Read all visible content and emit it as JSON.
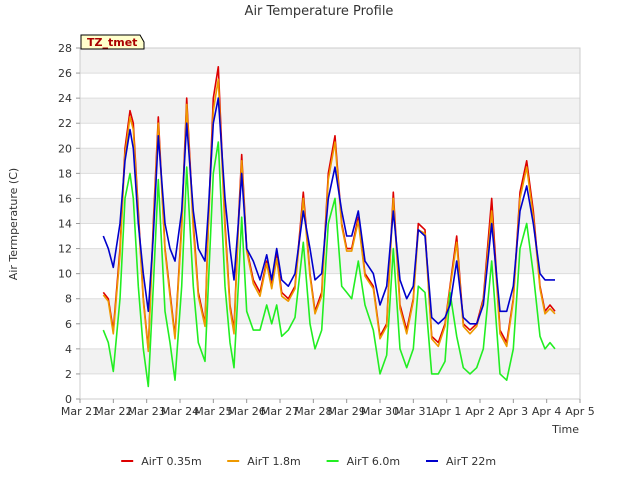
{
  "chart_data": {
    "type": "line",
    "title": "Air Temperature Profile",
    "xlabel": "Time",
    "ylabel": "Air Termperature (C)",
    "badge": "TZ_tmet",
    "ylim": [
      0,
      28
    ],
    "yticks": [
      0,
      2,
      4,
      6,
      8,
      10,
      12,
      14,
      16,
      18,
      20,
      22,
      24,
      26,
      28
    ],
    "xlim": [
      0,
      15
    ],
    "xticks": [
      {
        "value": 0,
        "label": "Mar 21"
      },
      {
        "value": 1,
        "label": "Mar 22"
      },
      {
        "value": 2,
        "label": "Mar 23"
      },
      {
        "value": 3,
        "label": "Mar 24"
      },
      {
        "value": 4,
        "label": "Mar 25"
      },
      {
        "value": 5,
        "label": "Mar 26"
      },
      {
        "value": 6,
        "label": "Mar 27"
      },
      {
        "value": 7,
        "label": "Mar 28"
      },
      {
        "value": 8,
        "label": "Mar 29"
      },
      {
        "value": 9,
        "label": "Mar 30"
      },
      {
        "value": 10,
        "label": "Mar 31"
      },
      {
        "value": 11,
        "label": "Apr 1"
      },
      {
        "value": 12,
        "label": "Apr 2"
      },
      {
        "value": 13,
        "label": "Apr 3"
      },
      {
        "value": 14,
        "label": "Apr 4"
      },
      {
        "value": 15,
        "label": "Apr 5"
      }
    ],
    "grid": "horizontal bands",
    "legend_position": "bottom",
    "series": [
      {
        "name": "AirT 0.35m",
        "color": "#dd0000",
        "x": [
          0.7,
          0.85,
          1.0,
          1.2,
          1.35,
          1.5,
          1.6,
          1.75,
          1.9,
          2.05,
          2.2,
          2.35,
          2.55,
          2.7,
          2.85,
          3.05,
          3.2,
          3.4,
          3.55,
          3.75,
          3.85,
          4.0,
          4.15,
          4.35,
          4.5,
          4.62,
          4.75,
          4.85,
          5.0,
          5.2,
          5.4,
          5.6,
          5.75,
          5.9,
          6.05,
          6.25,
          6.45,
          6.7,
          6.9,
          7.05,
          7.25,
          7.45,
          7.65,
          7.85,
          8.0,
          8.15,
          8.35,
          8.55,
          8.8,
          9.0,
          9.2,
          9.4,
          9.6,
          9.8,
          10.0,
          10.15,
          10.35,
          10.55,
          10.75,
          10.95,
          11.1,
          11.3,
          11.5,
          11.7,
          11.9,
          12.1,
          12.35,
          12.6,
          12.8,
          13.0,
          13.2,
          13.4,
          13.6,
          13.8,
          13.95,
          14.1,
          14.25
        ],
        "y": [
          8.5,
          8.0,
          5.5,
          12.0,
          20.0,
          23.0,
          22.0,
          15.0,
          8.0,
          4.0,
          14.0,
          22.5,
          12.0,
          8.5,
          5.0,
          14.0,
          24.0,
          14.0,
          8.5,
          6.0,
          14.0,
          24.0,
          26.5,
          14.0,
          7.5,
          5.5,
          14.0,
          19.5,
          12.0,
          9.5,
          8.5,
          11.0,
          9.0,
          11.5,
          8.5,
          8.0,
          9.0,
          16.5,
          10.0,
          7.0,
          8.5,
          18.0,
          21.0,
          14.0,
          12.0,
          12.0,
          14.5,
          10.0,
          9.0,
          5.0,
          6.0,
          16.5,
          7.5,
          5.5,
          8.0,
          14.0,
          13.5,
          5.0,
          4.5,
          6.0,
          9.0,
          13.0,
          6.0,
          5.5,
          6.0,
          8.0,
          16.0,
          5.5,
          4.5,
          8.0,
          16.5,
          19.0,
          15.0,
          9.0,
          7.0,
          7.5,
          7.0
        ]
      },
      {
        "name": "AirT 1.8m",
        "color": "#ee9900",
        "x": [
          0.7,
          0.85,
          1.0,
          1.2,
          1.35,
          1.5,
          1.6,
          1.75,
          1.9,
          2.05,
          2.2,
          2.35,
          2.55,
          2.7,
          2.85,
          3.05,
          3.2,
          3.4,
          3.55,
          3.75,
          3.85,
          4.0,
          4.15,
          4.35,
          4.5,
          4.62,
          4.75,
          4.85,
          5.0,
          5.2,
          5.4,
          5.6,
          5.75,
          5.9,
          6.05,
          6.25,
          6.45,
          6.7,
          6.9,
          7.05,
          7.25,
          7.45,
          7.65,
          7.85,
          8.0,
          8.15,
          8.35,
          8.55,
          8.8,
          9.0,
          9.2,
          9.4,
          9.6,
          9.8,
          10.0,
          10.15,
          10.35,
          10.55,
          10.75,
          10.95,
          11.1,
          11.3,
          11.5,
          11.7,
          11.9,
          12.1,
          12.35,
          12.6,
          12.8,
          13.0,
          13.2,
          13.4,
          13.6,
          13.8,
          13.95,
          14.1,
          14.25
        ],
        "y": [
          8.3,
          7.8,
          5.2,
          11.5,
          19.5,
          22.5,
          21.5,
          14.5,
          7.8,
          3.8,
          13.5,
          22.0,
          11.8,
          8.2,
          4.8,
          13.5,
          23.5,
          13.5,
          8.2,
          5.8,
          13.5,
          23.0,
          25.5,
          13.5,
          7.2,
          5.2,
          13.5,
          19.0,
          11.8,
          9.2,
          8.2,
          10.8,
          8.8,
          11.2,
          8.2,
          7.8,
          8.8,
          16.0,
          9.8,
          6.8,
          8.2,
          17.5,
          20.5,
          13.8,
          11.8,
          11.8,
          14.2,
          9.8,
          8.8,
          4.8,
          5.8,
          16.0,
          7.2,
          5.2,
          7.8,
          13.5,
          13.2,
          4.8,
          4.2,
          5.8,
          8.8,
          12.5,
          5.8,
          5.2,
          5.8,
          7.8,
          15.0,
          5.2,
          4.2,
          7.8,
          16.0,
          18.5,
          14.5,
          8.8,
          6.8,
          7.2,
          6.8
        ]
      },
      {
        "name": "AirT 6.0m",
        "color": "#22ee22",
        "x": [
          0.7,
          0.85,
          1.0,
          1.2,
          1.35,
          1.5,
          1.6,
          1.75,
          1.9,
          2.05,
          2.2,
          2.35,
          2.55,
          2.7,
          2.85,
          3.05,
          3.2,
          3.4,
          3.55,
          3.75,
          3.85,
          4.0,
          4.15,
          4.35,
          4.5,
          4.62,
          4.75,
          4.85,
          5.0,
          5.2,
          5.4,
          5.6,
          5.75,
          5.9,
          6.05,
          6.25,
          6.45,
          6.7,
          6.9,
          7.05,
          7.25,
          7.45,
          7.65,
          7.85,
          8.0,
          8.15,
          8.35,
          8.55,
          8.8,
          9.0,
          9.2,
          9.4,
          9.6,
          9.8,
          10.0,
          10.15,
          10.35,
          10.55,
          10.75,
          10.95,
          11.1,
          11.3,
          11.5,
          11.7,
          11.9,
          12.1,
          12.35,
          12.6,
          12.8,
          13.0,
          13.2,
          13.4,
          13.6,
          13.8,
          13.95,
          14.1,
          14.25
        ],
        "y": [
          5.5,
          4.5,
          2.2,
          8.0,
          16.0,
          18.0,
          16.0,
          9.0,
          4.0,
          1.0,
          9.0,
          17.5,
          7.0,
          4.5,
          1.5,
          9.0,
          18.5,
          9.0,
          4.5,
          3.0,
          9.0,
          18.0,
          20.5,
          9.0,
          4.5,
          2.5,
          9.0,
          14.5,
          7.0,
          5.5,
          5.5,
          7.5,
          6.0,
          7.5,
          5.0,
          5.5,
          6.5,
          12.5,
          6.0,
          4.0,
          5.5,
          14.0,
          16.0,
          9.0,
          8.5,
          8.0,
          11.0,
          7.5,
          5.5,
          2.0,
          3.5,
          12.0,
          4.0,
          2.5,
          4.0,
          9.0,
          8.5,
          2.0,
          2.0,
          3.0,
          8.5,
          5.0,
          2.5,
          2.0,
          2.5,
          4.0,
          11.0,
          2.0,
          1.5,
          4.0,
          12.0,
          14.0,
          10.0,
          5.0,
          4.0,
          4.5,
          4.0
        ]
      },
      {
        "name": "AirT 22m",
        "color": "#0000cc",
        "x": [
          0.7,
          0.85,
          1.0,
          1.2,
          1.35,
          1.5,
          1.6,
          1.75,
          1.9,
          2.05,
          2.2,
          2.35,
          2.55,
          2.7,
          2.85,
          3.05,
          3.2,
          3.4,
          3.55,
          3.75,
          3.85,
          4.0,
          4.15,
          4.35,
          4.5,
          4.62,
          4.75,
          4.85,
          5.0,
          5.2,
          5.4,
          5.6,
          5.75,
          5.9,
          6.05,
          6.25,
          6.45,
          6.7,
          6.9,
          7.05,
          7.25,
          7.45,
          7.65,
          7.85,
          8.0,
          8.15,
          8.35,
          8.55,
          8.8,
          9.0,
          9.2,
          9.4,
          9.6,
          9.8,
          10.0,
          10.15,
          10.35,
          10.55,
          10.75,
          10.95,
          11.1,
          11.3,
          11.5,
          11.7,
          11.9,
          12.1,
          12.35,
          12.6,
          12.8,
          13.0,
          13.2,
          13.4,
          13.6,
          13.8,
          13.95,
          14.1,
          14.25
        ],
        "y": [
          13.0,
          12.0,
          10.5,
          14.0,
          19.0,
          21.5,
          20.0,
          14.0,
          10.0,
          7.0,
          13.0,
          21.0,
          14.0,
          12.0,
          11.0,
          15.0,
          22.0,
          15.0,
          12.0,
          11.0,
          15.0,
          22.0,
          24.0,
          16.0,
          12.0,
          9.5,
          14.0,
          18.0,
          12.0,
          11.0,
          9.5,
          11.5,
          9.5,
          12.0,
          9.5,
          9.0,
          10.0,
          15.0,
          12.0,
          9.5,
          10.0,
          16.0,
          18.5,
          15.0,
          13.0,
          13.0,
          15.0,
          11.0,
          10.0,
          7.5,
          9.0,
          15.0,
          9.5,
          8.0,
          9.0,
          13.5,
          13.0,
          6.5,
          6.0,
          6.5,
          7.5,
          11.0,
          6.5,
          6.0,
          6.0,
          7.5,
          14.0,
          7.0,
          7.0,
          9.0,
          15.0,
          17.0,
          14.0,
          10.0,
          9.5,
          9.5,
          9.5
        ]
      }
    ]
  }
}
